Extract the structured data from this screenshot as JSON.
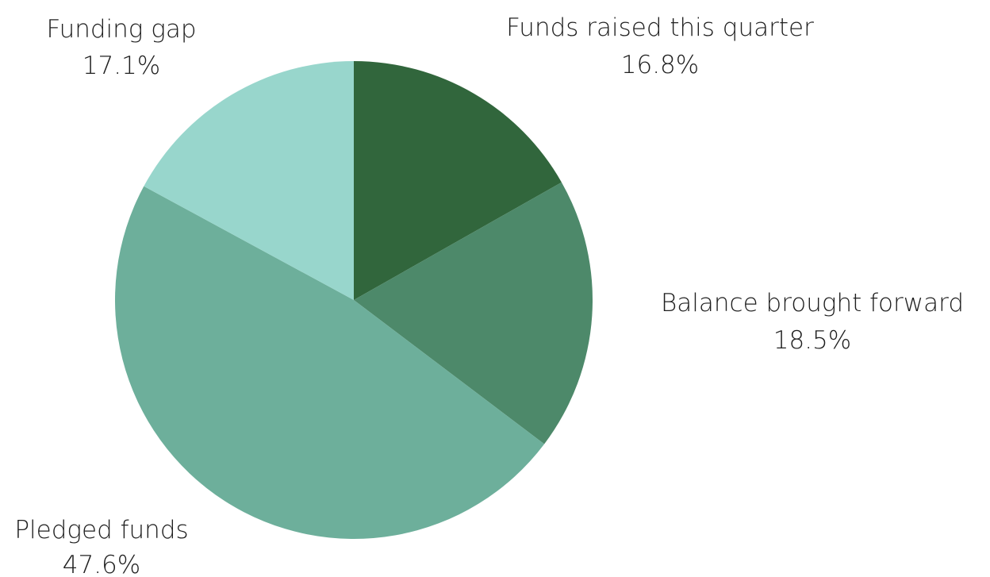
{
  "chart_data": {
    "type": "pie",
    "title": "",
    "slices": [
      {
        "label": "Funds raised this quarter",
        "value": 16.8,
        "display": "16.8%",
        "color": "#31663c"
      },
      {
        "label": "Balance brought forward",
        "value": 18.5,
        "display": "18.5%",
        "color": "#4d896a"
      },
      {
        "label": "Pledged funds",
        "value": 47.6,
        "display": "47.6%",
        "color": "#6daf9b"
      },
      {
        "label": "Funding gap",
        "value": 17.1,
        "display": "17.1%",
        "color": "#98d6cc"
      }
    ],
    "start": "12 o'clock",
    "direction": "clockwise",
    "legend": "none",
    "labels": "outside"
  }
}
